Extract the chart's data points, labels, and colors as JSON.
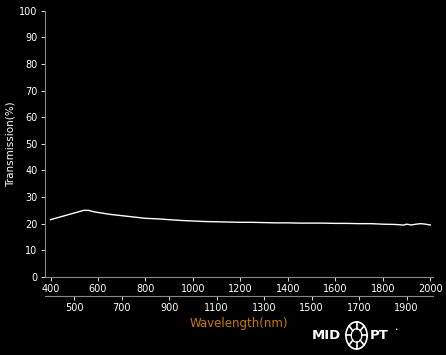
{
  "background_color": "#000000",
  "line_color": "#ffffff",
  "tick_label_color": "#ffffff",
  "ylabel_color": "#ffffff",
  "xlabel_color": "#cc7700",
  "ylabel": "Transmission(%)",
  "xlabel": "Wavelength(nm)",
  "xlim": [
    375,
    2010
  ],
  "ylim": [
    0,
    100
  ],
  "yticks": [
    0,
    10,
    20,
    30,
    40,
    50,
    60,
    70,
    80,
    90,
    100
  ],
  "xticks_top": [
    400,
    600,
    800,
    1000,
    1200,
    1400,
    1600,
    1800,
    2000
  ],
  "xticks_bottom": [
    500,
    700,
    900,
    1100,
    1300,
    1500,
    1700,
    1900
  ],
  "wavelengths": [
    400,
    420,
    440,
    460,
    480,
    500,
    520,
    540,
    560,
    580,
    600,
    650,
    700,
    750,
    800,
    850,
    900,
    950,
    1000,
    1050,
    1100,
    1150,
    1200,
    1250,
    1300,
    1350,
    1400,
    1450,
    1500,
    1550,
    1600,
    1650,
    1700,
    1750,
    1800,
    1850,
    1870,
    1880,
    1890,
    1900,
    1920,
    1940,
    1960,
    1980,
    2000
  ],
  "transmission": [
    21.5,
    22.0,
    22.5,
    23.0,
    23.5,
    24.0,
    24.5,
    25.0,
    25.0,
    24.5,
    24.2,
    23.5,
    23.0,
    22.5,
    22.0,
    21.8,
    21.5,
    21.2,
    21.0,
    20.8,
    20.7,
    20.6,
    20.5,
    20.5,
    20.4,
    20.3,
    20.3,
    20.2,
    20.2,
    20.2,
    20.1,
    20.1,
    20.0,
    20.0,
    19.8,
    19.7,
    19.6,
    19.5,
    19.5,
    19.8,
    19.5,
    19.8,
    20.0,
    19.8,
    19.5
  ],
  "tick_fontsize": 7.0,
  "ylabel_fontsize": 7.5,
  "xlabel_fontsize": 8.5,
  "logo_fontsize": 9.5
}
